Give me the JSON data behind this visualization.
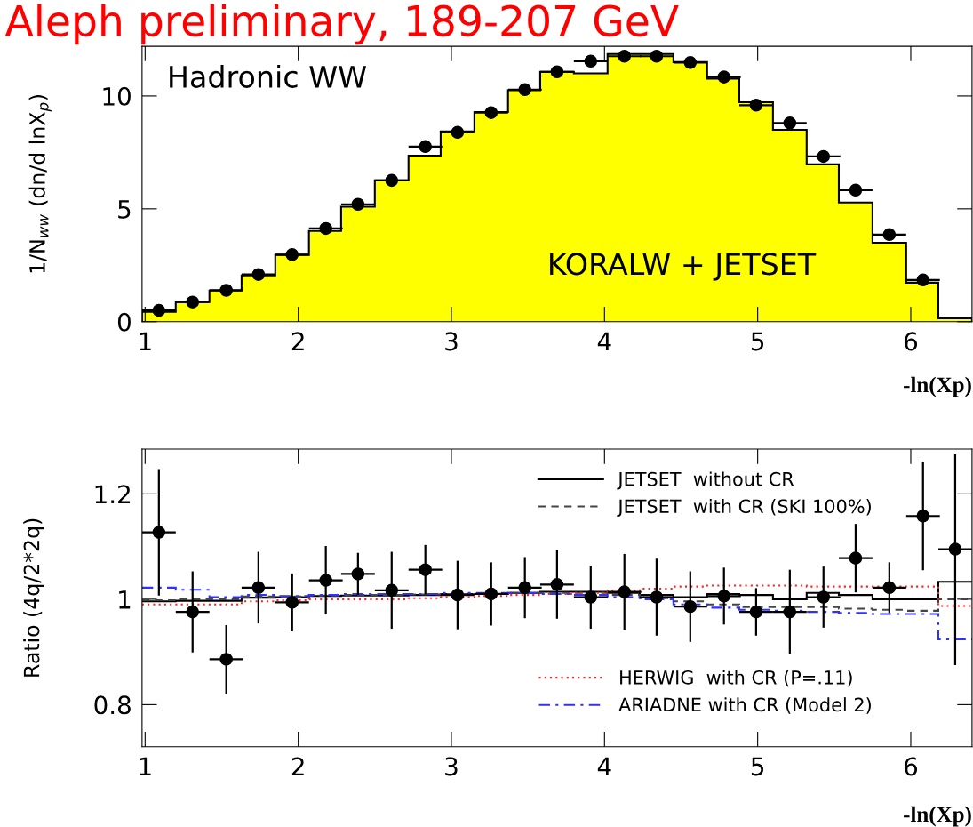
{
  "chart_data": [
    {
      "type": "histogram",
      "title": "Aleph preliminary, 189-207 GeV",
      "xlabel": "-ln(Xp)",
      "ylabel": "1/N$_{ww}$ (dn/d lnX$_{p}$)",
      "bins": [
        0.98,
        1.2,
        1.42,
        1.63,
        1.85,
        2.07,
        2.28,
        2.5,
        2.72,
        2.93,
        3.15,
        3.37,
        3.58,
        3.8,
        4.02,
        4.23,
        4.45,
        4.67,
        4.88,
        5.1,
        5.32,
        5.53,
        5.75,
        5.97,
        6.18,
        6.4
      ],
      "series": [
        {
          "color": "#ffff00",
          "values": [
            0.44,
            0.87,
            1.38,
            2.05,
            2.96,
            4.02,
            5.09,
            6.26,
            7.36,
            8.43,
            9.29,
            10.25,
            11.07,
            11.0,
            11.86,
            11.86,
            11.5,
            10.77,
            9.72,
            8.5,
            6.97,
            5.28,
            3.5,
            1.73,
            0.15
          ]
        },
        {
          "type": "scatter",
          "color": "#000000",
          "marker": "circle",
          "x": [
            1.09,
            1.31,
            1.53,
            1.74,
            1.96,
            2.18,
            2.39,
            2.61,
            2.83,
            3.04,
            3.26,
            3.48,
            3.69,
            3.91,
            4.13,
            4.34,
            4.56,
            4.78,
            4.99,
            5.21,
            5.43,
            5.64,
            5.86,
            6.08
          ],
          "values": [
            0.5,
            0.87,
            1.39,
            2.09,
            2.97,
            4.13,
            5.2,
            6.26,
            7.76,
            8.39,
            9.26,
            10.28,
            11.07,
            11.54,
            11.76,
            11.76,
            11.48,
            10.84,
            9.59,
            8.8,
            7.32,
            5.83,
            3.86,
            1.85
          ],
          "xerrors": [
            0.11,
            0.11,
            0.11,
            0.11,
            0.11,
            0.11,
            0.11,
            0.11,
            0.11,
            0.11,
            0.11,
            0.11,
            0.11,
            0.11,
            0.11,
            0.11,
            0.11,
            0.11,
            0.11,
            0.11,
            0.11,
            0.11,
            0.11,
            0.11
          ]
        }
      ],
      "xlim": [
        0.98,
        6.4
      ],
      "ylim": [
        0,
        12.2
      ],
      "xticks": [
        1,
        2,
        3,
        4,
        5,
        6
      ],
      "yticks": [
        0,
        5,
        10
      ],
      "annotations": [
        "Hadronic WW",
        "KORALW + JETSET"
      ]
    },
    {
      "type": "histogram",
      "xlabel": "-ln(Xp)",
      "ylabel": "Ratio (4q/2*2q)",
      "x": [
        1.09,
        1.31,
        1.53,
        1.74,
        1.96,
        2.18,
        2.39,
        2.61,
        2.83,
        3.04,
        3.26,
        3.48,
        3.69,
        3.91,
        4.13,
        4.34,
        4.56,
        4.78,
        4.99,
        5.21,
        5.43,
        5.64,
        5.86,
        6.08,
        6.29
      ],
      "bins": [
        0.98,
        1.2,
        1.42,
        1.63,
        1.85,
        2.07,
        2.28,
        2.5,
        2.72,
        2.93,
        3.15,
        3.37,
        3.58,
        3.8,
        4.02,
        4.23,
        4.45,
        4.67,
        4.88,
        5.1,
        5.32,
        5.53,
        5.75,
        5.97,
        6.18,
        6.4
      ],
      "series": [
        {
          "name": "JETSET  without CR",
          "color": "#000000",
          "line_style": "solid",
          "values": [
            0.996,
            0.997,
            0.997,
            1.003,
            1.004,
            1.006,
            1.007,
            1.007,
            1.008,
            1.01,
            1.01,
            1.012,
            1.014,
            1.014,
            1.012,
            1.008,
            1.004,
            1.01,
            1.008,
            1.0,
            1.012,
            1.008,
            1.0,
            1.0,
            1.033
          ]
        },
        {
          "name": "JETSET  with CR (SKI 100%)",
          "color": "#444444",
          "line_style": "dashed",
          "values": [
            0.998,
            1.0,
            1.0,
            1.005,
            1.005,
            1.007,
            1.008,
            1.008,
            1.009,
            1.01,
            1.01,
            1.012,
            1.012,
            1.012,
            1.008,
            1.002,
            0.996,
            0.99,
            0.985,
            0.985,
            0.985,
            0.982,
            0.98,
            0.978,
            1.0
          ]
        },
        {
          "name": "HERWIG  with CR (P=.11)",
          "color": "#ff2020",
          "line_style": "dotted",
          "values": [
            0.99,
            0.99,
            0.99,
            0.996,
            0.998,
            1.0,
            1.0,
            1.0,
            1.002,
            1.004,
            1.006,
            1.008,
            1.01,
            1.012,
            1.016,
            1.02,
            1.024,
            1.026,
            1.026,
            1.026,
            1.024,
            1.024,
            1.024,
            1.024,
            0.987
          ]
        },
        {
          "name": "ARIADNE with CR (Model 2)",
          "color": "#3030ff",
          "line_style": "dashdot",
          "values": [
            1.022,
            1.018,
            1.004,
            1.008,
            1.006,
            1.008,
            1.01,
            1.01,
            1.01,
            1.012,
            1.012,
            1.012,
            1.01,
            1.008,
            1.004,
            1.0,
            0.99,
            0.984,
            0.98,
            0.978,
            0.976,
            0.974,
            0.972,
            0.972,
            0.924
          ]
        },
        {
          "type": "scatter",
          "color": "#000000",
          "marker": "circle",
          "values": [
            1.127,
            0.976,
            0.886,
            1.022,
            0.994,
            1.036,
            1.048,
            1.017,
            1.056,
            1.008,
            1.01,
            1.022,
            1.028,
            1.004,
            1.014,
            1.004,
            0.986,
            1.006,
            0.976,
            0.976,
            1.004,
            1.078,
            1.022,
            1.158,
            1.095
          ],
          "errors": [
            0.12,
            0.077,
            0.065,
            0.068,
            0.055,
            0.065,
            0.04,
            0.073,
            0.047,
            0.065,
            0.06,
            0.058,
            0.065,
            0.06,
            0.072,
            0.073,
            0.067,
            0.054,
            0.045,
            0.08,
            0.058,
            0.065,
            0.048,
            0.103,
            [
              0.875,
              1.275
            ]
          ],
          "xerrors": [
            0.11,
            0.11,
            0.11,
            0.11,
            0.11,
            0.11,
            0.11,
            0.11,
            0.11,
            0.11,
            0.11,
            0.11,
            0.11,
            0.11,
            0.11,
            0.11,
            0.11,
            0.11,
            0.11,
            0.11,
            0.11,
            0.11,
            0.11,
            0.11,
            0.11
          ]
        }
      ],
      "xlim": [
        0.98,
        6.4
      ],
      "ylim": [
        0.72,
        1.285
      ],
      "xticks": [
        1,
        2,
        3,
        4,
        5,
        6
      ],
      "yticks": [
        0.8,
        1,
        1.2
      ],
      "legend": "right"
    }
  ]
}
